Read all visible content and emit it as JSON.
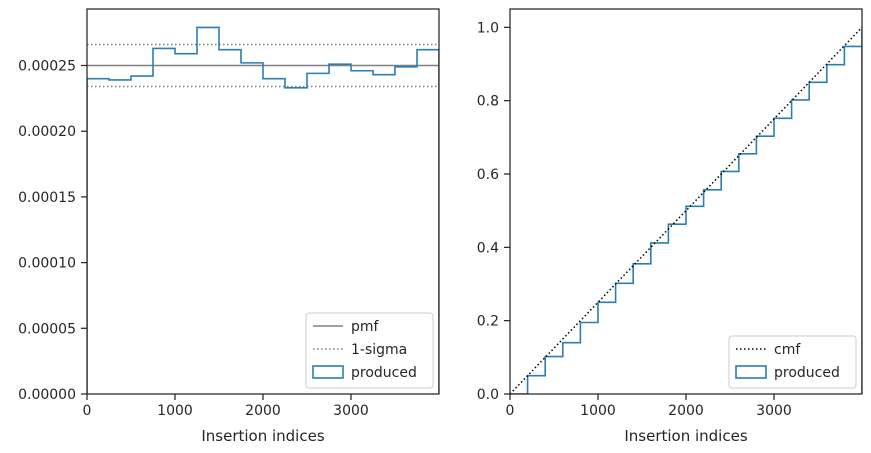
{
  "chart_data": [
    {
      "type": "line",
      "xlabel": "Insertion indices",
      "ylabel": "",
      "xlim": [
        0,
        4000
      ],
      "ylim": [
        0,
        0.000293
      ],
      "xticks": [
        0,
        1000,
        2000,
        3000
      ],
      "xtick_labels": [
        "0",
        "1000",
        "2000",
        "3000"
      ],
      "yticks": [
        0,
        5e-05,
        0.0001,
        0.00015,
        0.0002,
        0.00025
      ],
      "ytick_labels": [
        "0.00000",
        "0.00005",
        "0.00010",
        "0.00015",
        "0.00020",
        "0.00025"
      ],
      "legend_position": "bottom-right",
      "pmf": 0.00025,
      "sigma_band": [
        0.000234,
        0.000266
      ],
      "bin_edges": [
        0,
        250,
        500,
        750,
        1000,
        1250,
        1500,
        1750,
        2000,
        2250,
        2500,
        2750,
        3000,
        3250,
        3500,
        3750,
        4000
      ],
      "series": [
        {
          "name": "pmf",
          "style": "solid",
          "color": "#808080"
        },
        {
          "name": "1-sigma",
          "style": "dotted",
          "color": "#808080"
        },
        {
          "name": "produced",
          "style": "step",
          "color": "#2a7fb2",
          "values": [
            0.00024,
            0.000239,
            0.000242,
            0.000263,
            0.000259,
            0.000279,
            0.000262,
            0.000252,
            0.00024,
            0.000233,
            0.000244,
            0.000251,
            0.000246,
            0.000243,
            0.000249,
            0.000262
          ]
        }
      ]
    },
    {
      "type": "line",
      "xlabel": "Insertion indices",
      "ylabel": "",
      "xlim": [
        0,
        4000
      ],
      "ylim": [
        0,
        1.05
      ],
      "xticks": [
        0,
        1000,
        2000,
        3000
      ],
      "xtick_labels": [
        "0",
        "1000",
        "2000",
        "3000"
      ],
      "yticks": [
        0,
        0.2,
        0.4,
        0.6,
        0.8,
        1.0
      ],
      "ytick_labels": [
        "0.0",
        "0.2",
        "0.4",
        "0.6",
        "0.8",
        "1.0"
      ],
      "legend_position": "bottom-right",
      "series": [
        {
          "name": "cmf",
          "style": "dotted",
          "color": "#000000",
          "x": [
            0,
            4000
          ],
          "y": [
            0,
            1.0
          ]
        },
        {
          "name": "produced",
          "style": "step",
          "color": "#2a7fb2",
          "x": [
            0,
            200,
            400,
            600,
            800,
            1000,
            1200,
            1400,
            1600,
            1800,
            2000,
            2200,
            2400,
            2600,
            2800,
            3000,
            3200,
            3400,
            3600,
            3800,
            4000
          ],
          "y": [
            0,
            0.05,
            0.102,
            0.14,
            0.195,
            0.25,
            0.302,
            0.355,
            0.412,
            0.463,
            0.512,
            0.557,
            0.607,
            0.655,
            0.703,
            0.752,
            0.802,
            0.85,
            0.898,
            0.948,
            1.0
          ]
        }
      ]
    }
  ]
}
